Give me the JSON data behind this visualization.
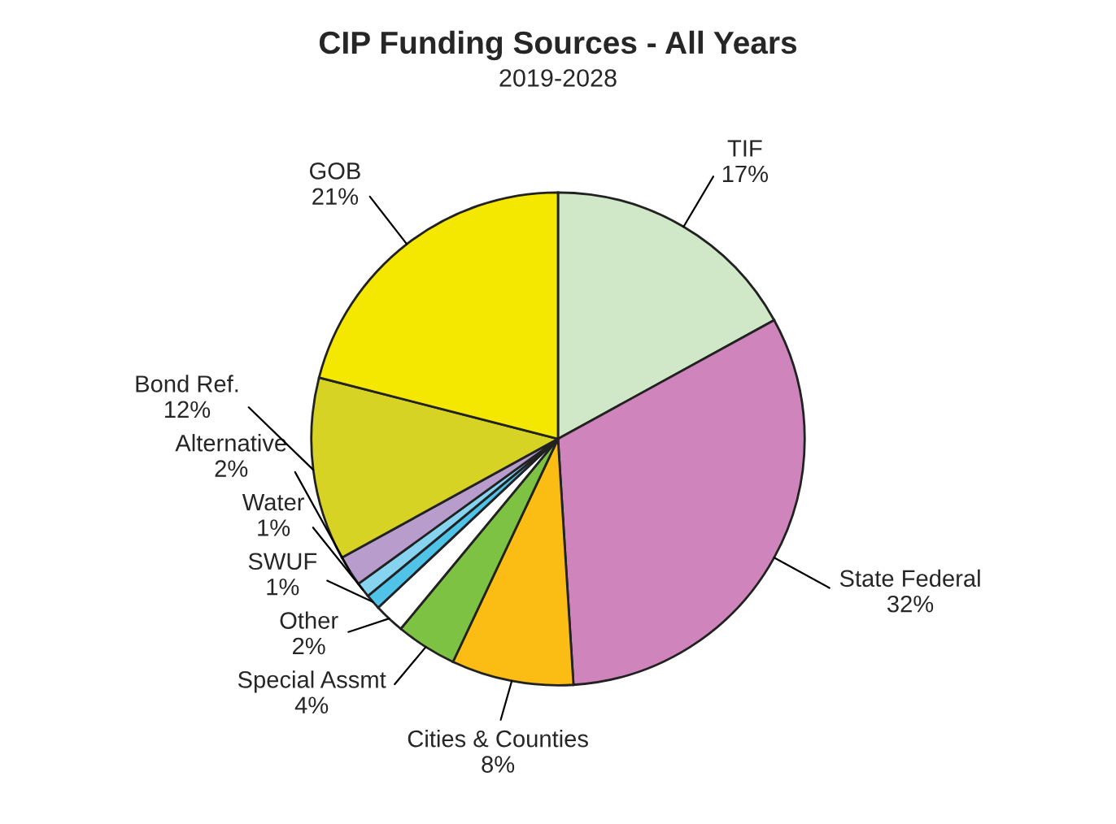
{
  "chart_data": {
    "type": "pie",
    "title": "CIP Funding Sources - All Years",
    "subtitle": "2019-2028",
    "categories": [
      "TIF",
      "State Federal",
      "Cities & Counties",
      "Special Assmt",
      "Other",
      "SWUF",
      "Water",
      "Alternative",
      "Bond Ref.",
      "GOB"
    ],
    "values": [
      17,
      32,
      8,
      4,
      2,
      1,
      1,
      2,
      12,
      21
    ],
    "value_labels": [
      "17%",
      "32%",
      "8%",
      "4%",
      "2%",
      "1%",
      "1%",
      "2%",
      "12%",
      "21%"
    ],
    "colors": [
      "#d0e8c8",
      "#cf85bb",
      "#fbbd14",
      "#7dc242",
      "#ffffff",
      "#4fc3e8",
      "#86d4f0",
      "#b89ccb",
      "#d6d325",
      "#f5e800"
    ],
    "legend": false
  }
}
